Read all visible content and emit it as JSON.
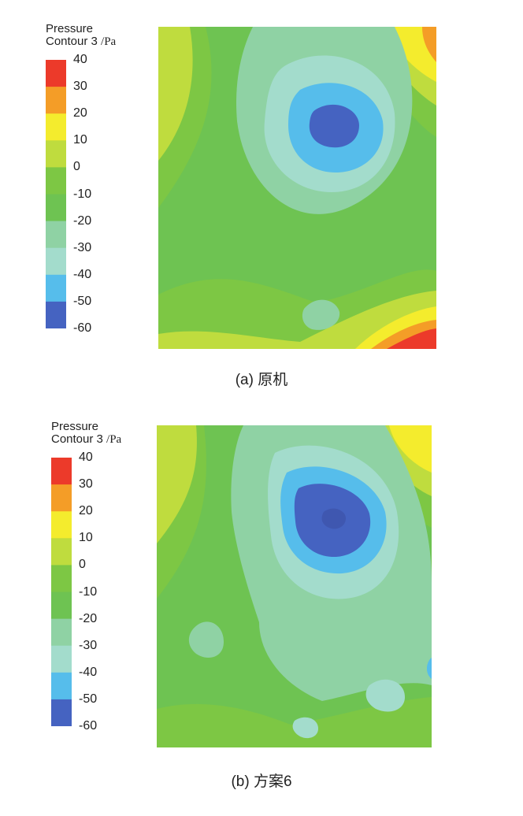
{
  "chart_data": [
    {
      "type": "heatmap",
      "panel": "a",
      "caption": "(a) 原机",
      "legend_title_line1": "Pressure",
      "legend_title_line2": "Contour 3",
      "legend_unit": "/Pa",
      "levels": [
        40,
        30,
        20,
        10,
        0,
        -10,
        -20,
        -30,
        -40,
        -50,
        -60
      ],
      "level_labels": [
        "40",
        "30",
        "20",
        "10",
        "0",
        "-10",
        "-20",
        "-30",
        "-40",
        "-50",
        "-60"
      ],
      "band_colors": [
        "#ec3a2a",
        "#f49d27",
        "#f4ec2d",
        "#bfdc3e",
        "#7dc744",
        "#6ec352",
        "#8fd2a4",
        "#a3dccc",
        "#56bdeb",
        "#4563c1"
      ],
      "pressure_field": {
        "background": -10,
        "low_centre": {
          "value": -60,
          "position": "upper-center"
        },
        "high_regions": [
          {
            "value": 40,
            "position": "bottom-right"
          },
          {
            "value": 30,
            "position": "top-right"
          }
        ]
      }
    },
    {
      "type": "heatmap",
      "panel": "b",
      "caption": "(b) 方案6",
      "legend_title_line1": "Pressure",
      "legend_title_line2": "Contour 3",
      "legend_unit": "/Pa",
      "levels": [
        40,
        30,
        20,
        10,
        0,
        -10,
        -20,
        -30,
        -40,
        -50,
        -60
      ],
      "level_labels": [
        "40",
        "30",
        "20",
        "10",
        "0",
        "-10",
        "-20",
        "-30",
        "-40",
        "-50",
        "-60"
      ],
      "band_colors": [
        "#ec3a2a",
        "#f49d27",
        "#f4ec2d",
        "#bfdc3e",
        "#7dc744",
        "#6ec352",
        "#8fd2a4",
        "#a3dccc",
        "#56bdeb",
        "#4563c1"
      ],
      "pressure_field": {
        "background": -10,
        "low_centre": {
          "value": -60,
          "position": "upper-center"
        },
        "high_regions": [
          {
            "value": 20,
            "position": "top-right"
          }
        ]
      }
    }
  ]
}
